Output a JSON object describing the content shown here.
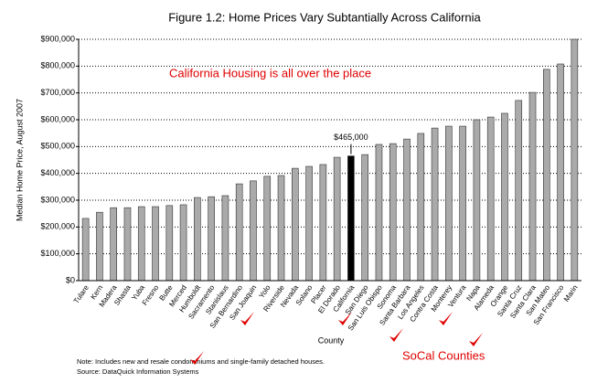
{
  "chart_data": {
    "type": "bar",
    "title": "Figure 1.2: Home Prices Vary Subtantially Across California",
    "y_label": "Median Home Price, August 2007",
    "x_label": "County",
    "annotations": [
      "California Housing is all over the place",
      "SoCal Counties"
    ],
    "notes": [
      "Note: Includes new and resale condominiums and single-family detached houses.",
      "Source: DataQuick Information Systems"
    ],
    "categories": [
      "Tulare",
      "Kern",
      "Madera",
      "Shasta",
      "Yuba",
      "Fresno",
      "Butte",
      "Merced",
      "Humboldt",
      "Sacramento",
      "Stanislaus",
      "San Bernardino",
      "San Joaquin",
      "Yolo",
      "Riverside",
      "Nevada",
      "Solano",
      "Placer",
      "El Dorado",
      "California",
      "San Diego",
      "San Luis Obispo",
      "Sonoma",
      "Santa Barbara",
      "Los Angeles",
      "Contra Costa",
      "Monterey",
      "Ventura",
      "Napa",
      "Alameda",
      "Orange",
      "Santa Cruz",
      "Santa Clara",
      "San Mateo",
      "San Francisco",
      "Marin"
    ],
    "values": [
      232000,
      255000,
      272000,
      272000,
      276000,
      276000,
      280000,
      283000,
      310000,
      313000,
      317000,
      361000,
      372000,
      389000,
      392000,
      419000,
      426000,
      433000,
      460000,
      465000,
      470000,
      508000,
      511000,
      528000,
      549000,
      569000,
      576000,
      576000,
      600000,
      610000,
      624000,
      672000,
      702000,
      788000,
      808000,
      900000
    ],
    "value_labels": [
      null,
      null,
      null,
      null,
      null,
      null,
      null,
      null,
      null,
      null,
      null,
      null,
      null,
      null,
      null,
      null,
      null,
      null,
      null,
      "$465,000",
      null,
      null,
      null,
      null,
      null,
      null,
      null,
      null,
      null,
      null,
      null,
      null,
      null,
      null,
      null,
      null
    ],
    "colors": [
      "#aaaaaa",
      "#aaaaaa",
      "#aaaaaa",
      "#aaaaaa",
      "#aaaaaa",
      "#aaaaaa",
      "#aaaaaa",
      "#aaaaaa",
      "#aaaaaa",
      "#aaaaaa",
      "#aaaaaa",
      "#aaaaaa",
      "#aaaaaa",
      "#aaaaaa",
      "#aaaaaa",
      "#aaaaaa",
      "#aaaaaa",
      "#aaaaaa",
      "#aaaaaa",
      "#000000",
      "#aaaaaa",
      "#aaaaaa",
      "#aaaaaa",
      "#aaaaaa",
      "#aaaaaa",
      "#aaaaaa",
      "#aaaaaa",
      "#aaaaaa",
      "#aaaaaa",
      "#aaaaaa",
      "#aaaaaa",
      "#aaaaaa",
      "#aaaaaa",
      "#aaaaaa",
      "#aaaaaa",
      "#aaaaaa"
    ],
    "ylim": [
      0,
      900000
    ],
    "yticks": [
      {
        "value": 0,
        "label": "$0"
      },
      {
        "value": 100000,
        "label": "$100,000"
      },
      {
        "value": 200000,
        "label": "$200,000"
      },
      {
        "value": 300000,
        "label": "$300,000"
      },
      {
        "value": 400000,
        "label": "$400,000"
      },
      {
        "value": 500000,
        "label": "$500,000"
      },
      {
        "value": 600000,
        "label": "$600,000"
      },
      {
        "value": 700000,
        "label": "$700,000"
      },
      {
        "value": 800000,
        "label": "$800,000"
      },
      {
        "value": 900000,
        "label": "$900,000"
      }
    ],
    "grid": true
  }
}
